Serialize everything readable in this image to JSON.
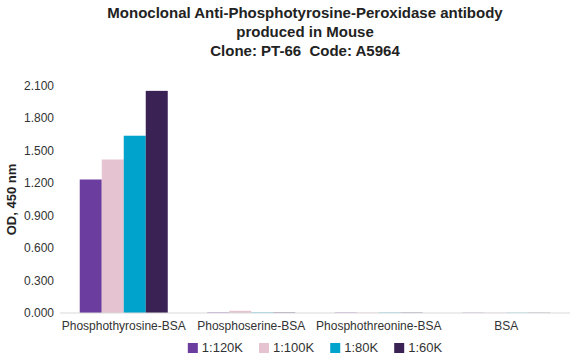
{
  "chart_data": {
    "type": "bar",
    "title": "Monoclonal Anti-Phosphotyrosine-Peroxidase antibody produced in Mouse",
    "subtitle": "Clone: PT-66  Code: A5964",
    "y_label": "OD, 450 nm",
    "categories": [
      "Phosphothyrosine-BSA",
      "Phosphoserine-BSA",
      "Phosphothreonine-BSA",
      "BSA"
    ],
    "series": [
      {
        "name": "1:120K",
        "color": "#6a3d9e",
        "values": [
          1.235,
          0.004,
          0.003,
          0.002
        ]
      },
      {
        "name": "1:100K",
        "color": "#e6c3d0",
        "values": [
          1.42,
          0.02,
          0.003,
          0.002
        ]
      },
      {
        "name": "1:80K",
        "color": "#00a3cc",
        "values": [
          1.64,
          0.004,
          0.003,
          0.002
        ]
      },
      {
        "name": "1:60K",
        "color": "#3b2255",
        "values": [
          2.055,
          0.004,
          0.003,
          0.002
        ]
      }
    ],
    "ylim": [
      0,
      2.1
    ],
    "yticks": [
      {
        "value": 0,
        "label": "0.000"
      },
      {
        "value": 0.3,
        "label": "0.300"
      },
      {
        "value": 0.6,
        "label": "0.600"
      },
      {
        "value": 0.9,
        "label": "0.900"
      },
      {
        "value": 1.2,
        "label": "1.200"
      },
      {
        "value": 1.5,
        "label": "1.500"
      },
      {
        "value": 1.8,
        "label": "1.800"
      },
      {
        "value": 2.1,
        "label": "2.100"
      }
    ],
    "grid": false,
    "legend": "bottom"
  }
}
